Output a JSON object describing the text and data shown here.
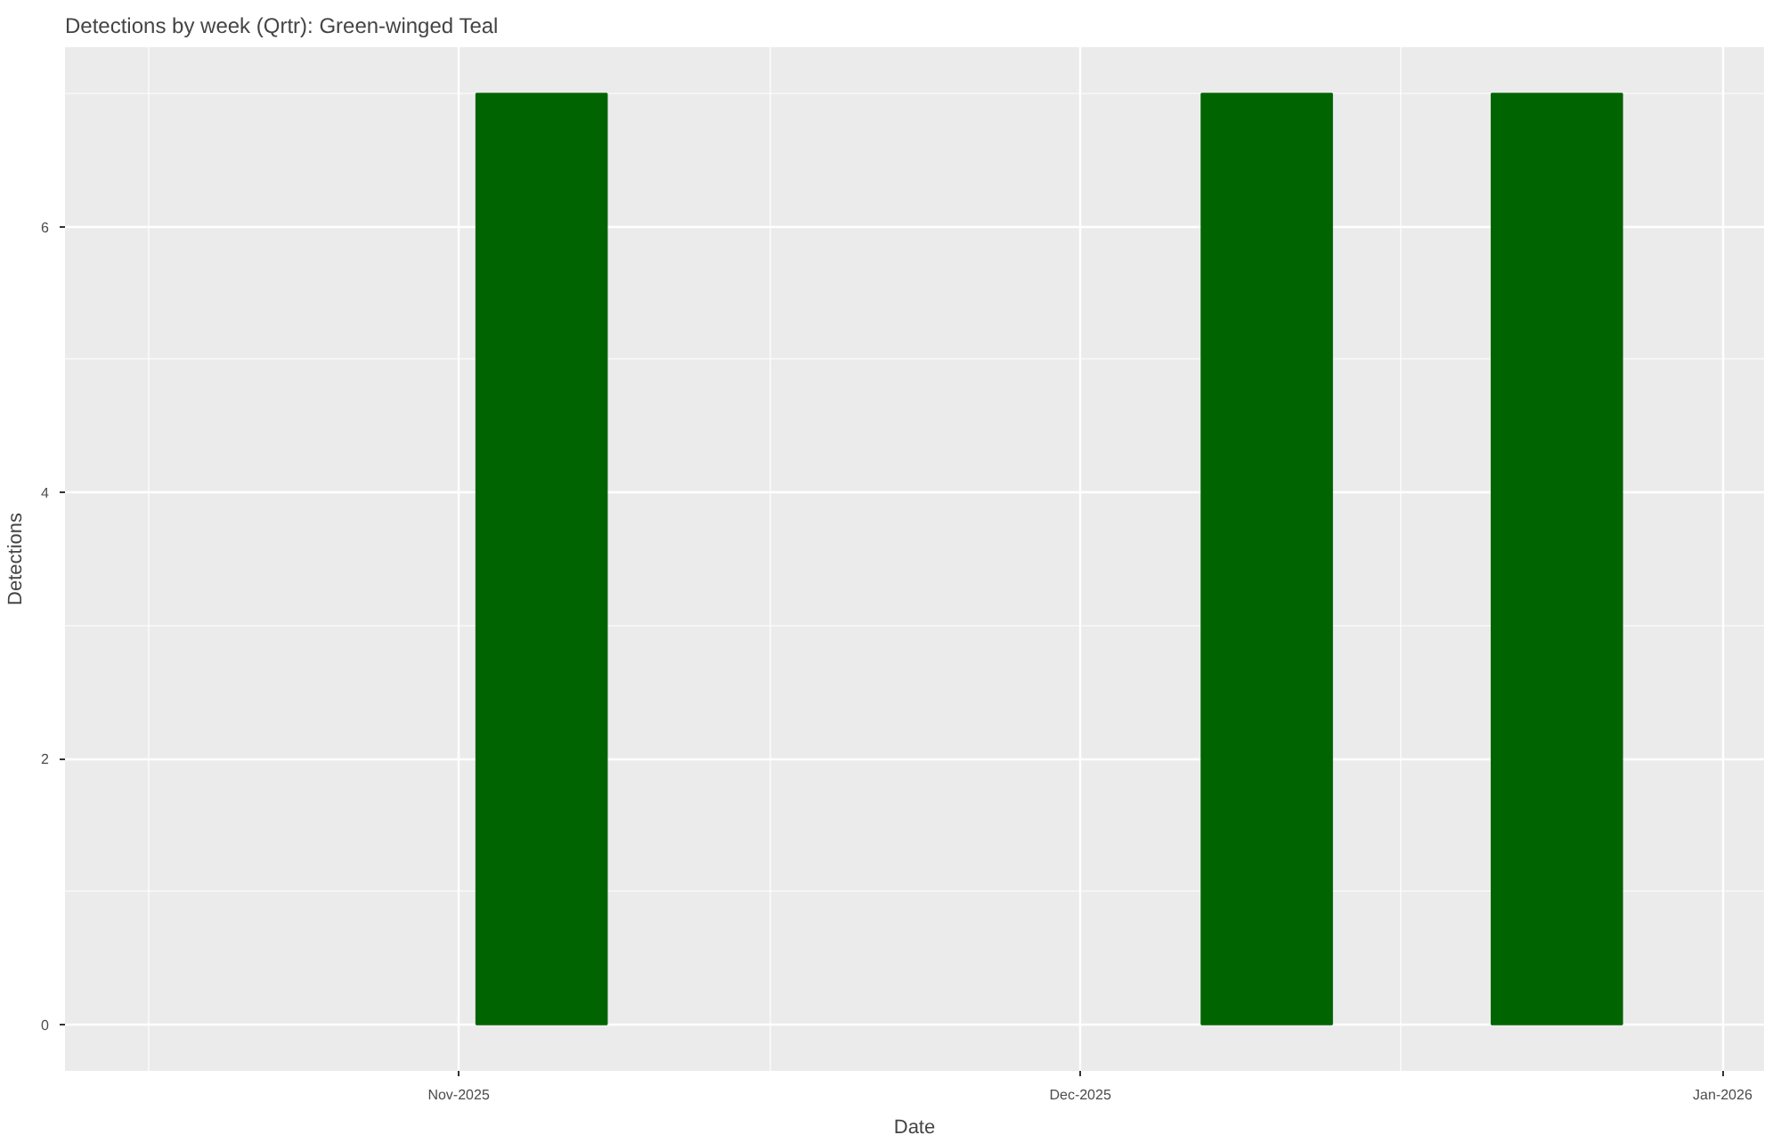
{
  "chart_data": {
    "type": "bar",
    "title": "Detections by week (Qrtr): Green-winged Teal",
    "xlabel": "Date",
    "ylabel": "Detections",
    "x": [
      "2025-11-05",
      "2025-12-10",
      "2025-12-24"
    ],
    "series": [
      {
        "color": "#006400",
        "values": [
          7,
          7,
          7
        ]
      }
    ],
    "xlim": [
      "2025-10-13",
      "2026-01-03"
    ],
    "xticks": [
      {
        "value": "2025-11-01",
        "label": "Nov-2025"
      },
      {
        "value": "2025-12-01",
        "label": "Dec-2025"
      },
      {
        "value": "2026-01-01",
        "label": "Jan-2026"
      }
    ],
    "ylim": [
      -0.35,
      7.35
    ],
    "yticks": [
      0,
      2,
      4,
      6
    ],
    "grid": true
  }
}
